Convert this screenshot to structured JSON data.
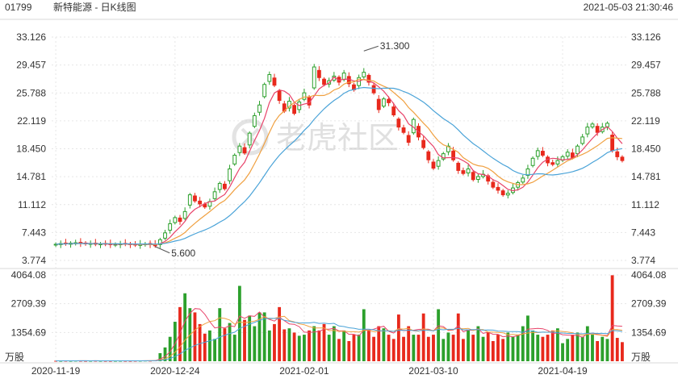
{
  "header": {
    "code": "01799",
    "title": "新特能源 - 日K线图",
    "datetime": "2021-05-03 21:30:46"
  },
  "watermark": {
    "text": "老虎社区"
  },
  "colors": {
    "up": "#2ca02c",
    "down": "#e8291c",
    "ma5": "#e8436a",
    "ma10": "#f0a040",
    "ma20": "#4aa3d8",
    "grid": "#e6e6e6",
    "text": "#333333"
  },
  "chart_data": {
    "type": "candlestick",
    "price_axis": {
      "min": 3.774,
      "max": 33.126,
      "ticks": [
        "33.126",
        "29.457",
        "25.788",
        "22.119",
        "18.450",
        "14.781",
        "11.112",
        "7.443",
        "3.774"
      ]
    },
    "volume_axis": {
      "max": 4064.08,
      "ticks": [
        "4064.08",
        "2709.39",
        "1354.69"
      ],
      "unit": "万股"
    },
    "x_ticks": [
      {
        "label": "2020-11-19",
        "index": 0
      },
      {
        "label": "2020-12-24",
        "index": 24
      },
      {
        "label": "2021-02-01",
        "index": 50
      },
      {
        "label": "2021-03-10",
        "index": 76
      },
      {
        "label": "2021-04-19",
        "index": 102
      }
    ],
    "annotations": [
      {
        "label": "31.300",
        "index": 62,
        "price": 31.3
      },
      {
        "label": "5.600",
        "index": 20,
        "price": 5.6
      }
    ],
    "close": [
      5.9,
      6.0,
      5.95,
      6.05,
      6.1,
      6.0,
      5.95,
      6.0,
      5.9,
      5.95,
      5.9,
      5.85,
      5.9,
      5.95,
      5.9,
      5.85,
      5.8,
      5.9,
      5.95,
      5.85,
      5.7,
      6.5,
      7.4,
      8.6,
      9.4,
      8.9,
      10.2,
      12.4,
      11.6,
      11.2,
      10.8,
      11.5,
      12.8,
      13.9,
      13.2,
      15.8,
      17.6,
      18.8,
      17.9,
      20.5,
      22.8,
      24.2,
      26.9,
      28.2,
      26.8,
      24.8,
      23.4,
      24.7,
      23.1,
      24.6,
      25.8,
      24.2,
      29.2,
      27.8,
      26.9,
      27.4,
      28.0,
      27.2,
      28.4,
      27.0,
      26.2,
      27.8,
      28.5,
      27.2,
      25.8,
      23.6,
      25.0,
      24.5,
      22.9,
      21.3,
      20.6,
      19.3,
      22.3,
      20.0,
      18.6,
      17.0,
      15.9,
      16.9,
      17.8,
      18.8,
      17.0,
      15.6,
      15.2,
      15.8,
      14.4,
      14.8,
      15.1,
      14.2,
      13.4,
      13.0,
      12.4,
      12.6,
      13.3,
      14.0,
      14.6,
      15.8,
      17.2,
      18.2,
      17.6,
      16.6,
      16.4,
      16.9,
      17.4,
      18.0,
      17.3,
      18.8,
      20.0,
      21.3,
      21.7,
      20.6,
      21.3,
      21.8,
      18.2,
      17.4,
      16.9
    ],
    "volume": [
      20,
      18,
      22,
      19,
      25,
      21,
      18,
      20,
      22,
      19,
      18,
      17,
      20,
      21,
      19,
      18,
      22,
      24,
      30,
      26,
      40,
      380,
      650,
      1150,
      1860,
      2550,
      3200,
      2500,
      2300,
      1750,
      1300,
      1450,
      1050,
      2500,
      1550,
      1800,
      1250,
      3550,
      1950,
      2150,
      1650,
      2300,
      2300,
      1450,
      1750,
      2550,
      1500,
      1550,
      1350,
      1200,
      1250,
      1450,
      1650,
      1450,
      1750,
      1250,
      1650,
      1050,
      1450,
      950,
      1250,
      1250,
      2450,
      1450,
      1150,
      1650,
      1550,
      1250,
      1050,
      2200,
      1150,
      1650,
      1250,
      1250,
      2250,
      1150,
      1250,
      2450,
      1050,
      1350,
      1250,
      2250,
      1050,
      1450,
      1250,
      1650,
      1150,
      1350,
      950,
      1250,
      1050,
      1350,
      1150,
      1250,
      1650,
      2150,
      1450,
      1250,
      1150,
      1250,
      1450,
      1550,
      850,
      1050,
      1250,
      1350,
      1150,
      1650,
      1250,
      950,
      1150,
      1050,
      4050,
      1100,
      900
    ],
    "volume_up": [
      false,
      true,
      false,
      true,
      true,
      false,
      false,
      true,
      false,
      true,
      false,
      false,
      true,
      true,
      false,
      false,
      false,
      true,
      true,
      false,
      false,
      true,
      true,
      true,
      true,
      false,
      true,
      true,
      false,
      false,
      false,
      true,
      true,
      true,
      false,
      true,
      true,
      true,
      false,
      true,
      true,
      true,
      true,
      true,
      false,
      false,
      false,
      true,
      false,
      true,
      true,
      false,
      true,
      false,
      false,
      true,
      true,
      false,
      true,
      false,
      false,
      true,
      true,
      false,
      false,
      false,
      true,
      false,
      false,
      false,
      false,
      false,
      true,
      false,
      false,
      false,
      false,
      true,
      true,
      true,
      false,
      false,
      false,
      true,
      false,
      true,
      true,
      false,
      false,
      false,
      false,
      true,
      true,
      true,
      true,
      true,
      true,
      true,
      false,
      false,
      false,
      true,
      true,
      true,
      false,
      true,
      true,
      true,
      true,
      false,
      true,
      true,
      false,
      false,
      false
    ]
  }
}
